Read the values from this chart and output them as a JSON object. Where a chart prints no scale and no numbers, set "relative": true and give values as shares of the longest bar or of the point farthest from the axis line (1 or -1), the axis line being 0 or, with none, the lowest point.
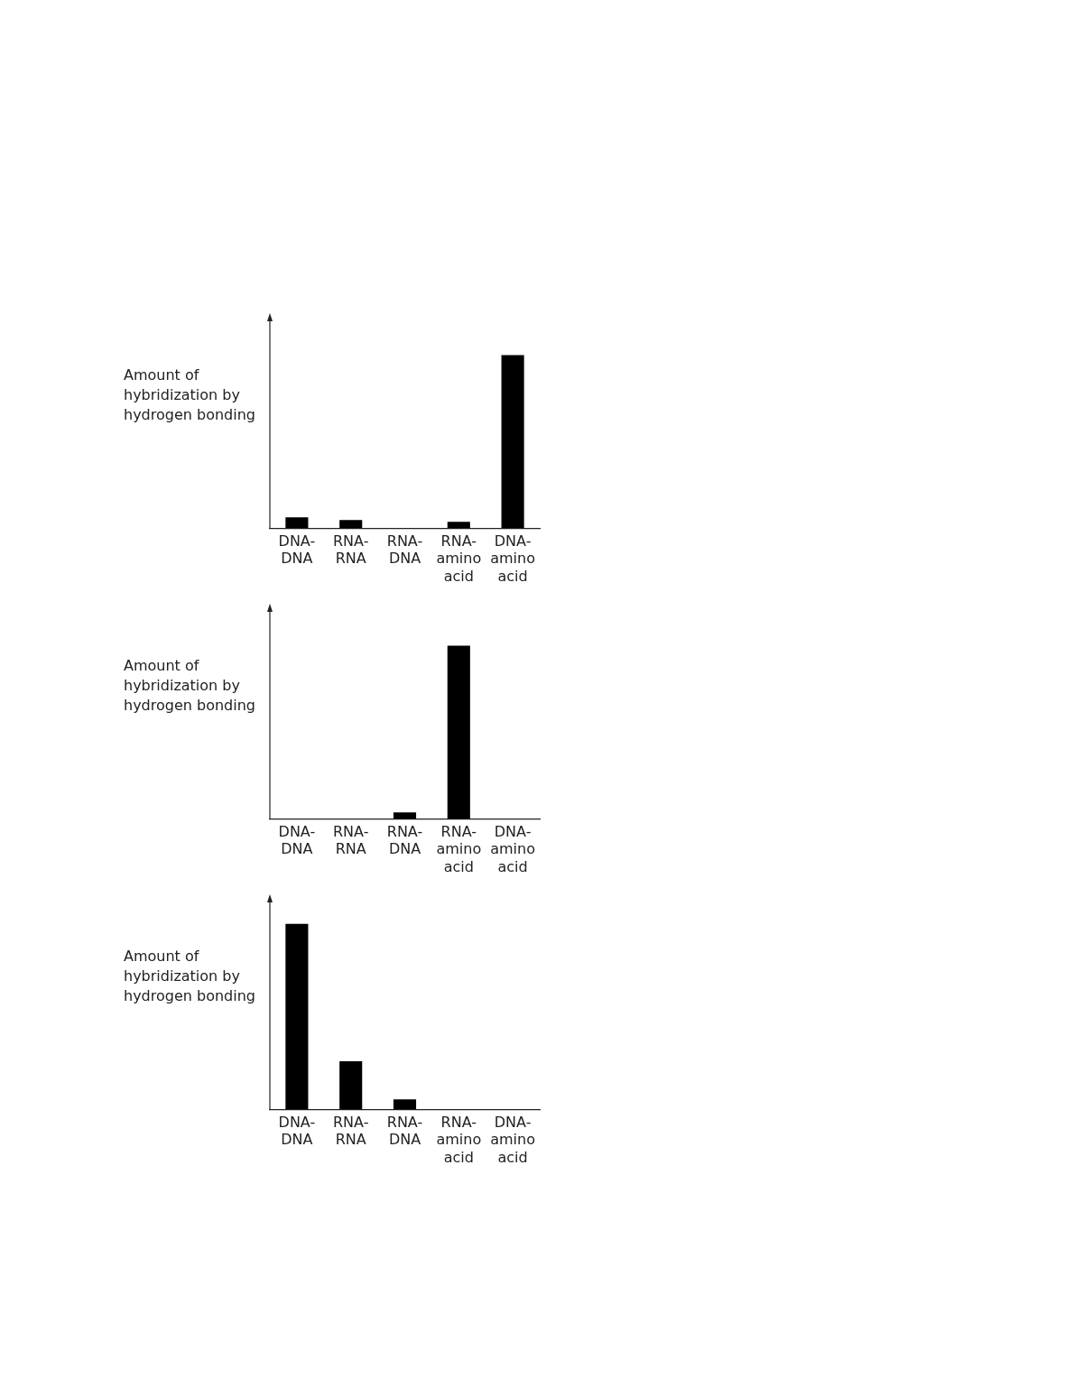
{
  "chart_data": [
    {
      "type": "bar",
      "relative": true,
      "ylabel": "Amount of\nhybridization by\nhydrogen bonding",
      "categories": [
        "DNA-\nDNA",
        "RNA-\nRNA",
        "RNA-\nDNA",
        "RNA-\namino\nacid",
        "DNA-\namino\nacid"
      ],
      "values": [
        0.063,
        0.048,
        0,
        0.037,
        1
      ],
      "color": "#000000",
      "grid": false,
      "legend": false
    },
    {
      "type": "bar",
      "relative": true,
      "ylabel": "Amount of\nhybridization by\nhydrogen bonding",
      "categories": [
        "DNA-\nDNA",
        "RNA-\nRNA",
        "RNA-\nDNA",
        "RNA-\namino\nacid",
        "DNA-\namino\nacid"
      ],
      "values": [
        0,
        0,
        0.037,
        1,
        0
      ],
      "color": "#000000",
      "grid": false,
      "legend": false
    },
    {
      "type": "bar",
      "relative": true,
      "ylabel": "Amount of\nhybridization by\nhydrogen bonding",
      "categories": [
        "DNA-\nDNA",
        "RNA-\nRNA",
        "RNA-\nDNA",
        "RNA-\namino\nacid",
        "DNA-\namino\nacid"
      ],
      "values": [
        1,
        0.26,
        0.054,
        0,
        0
      ],
      "color": "#000000",
      "grid": false,
      "legend": false
    }
  ]
}
